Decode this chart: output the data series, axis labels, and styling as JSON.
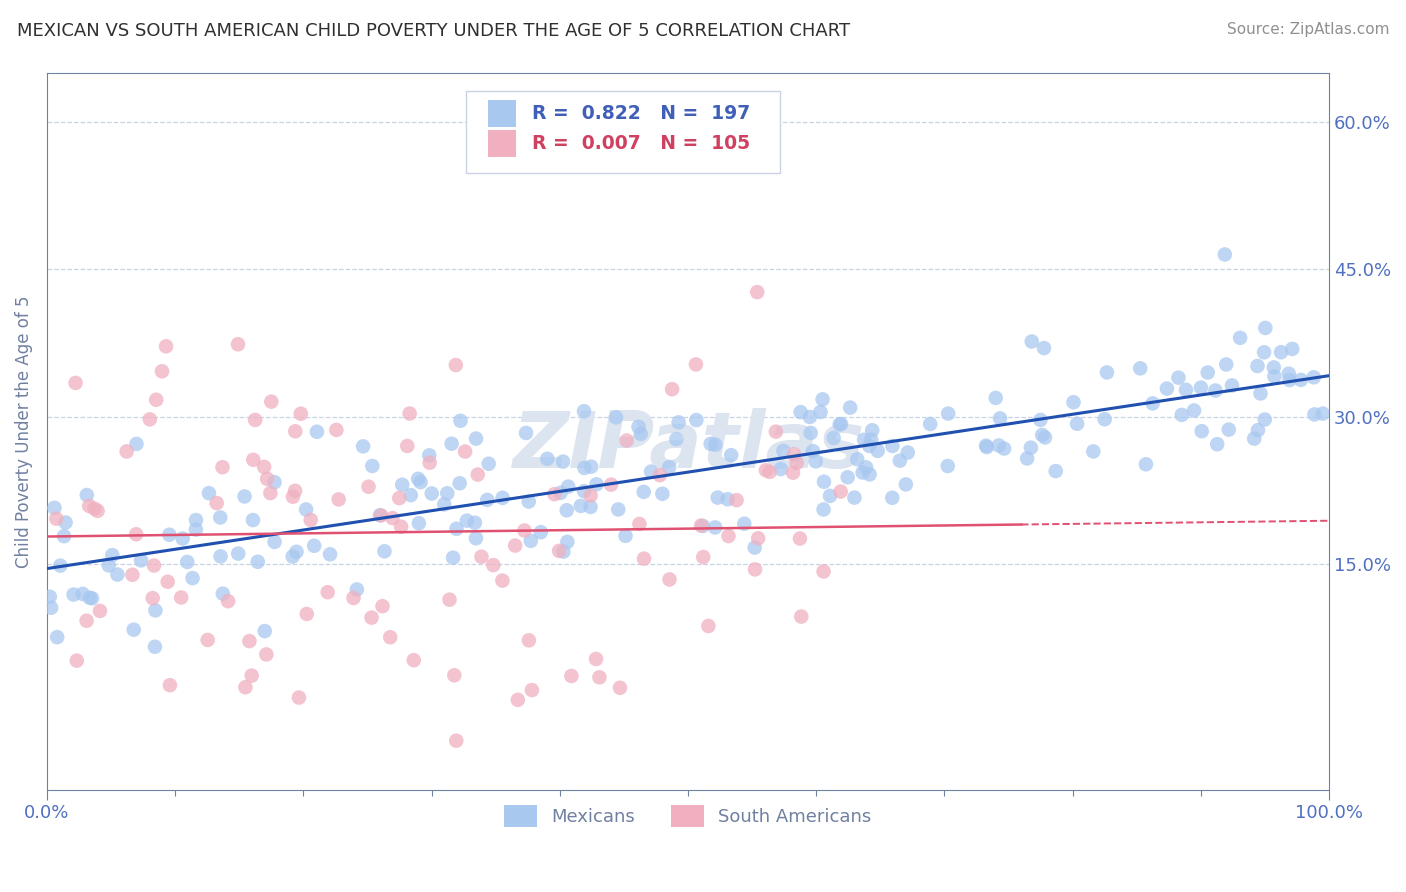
{
  "title": "MEXICAN VS SOUTH AMERICAN CHILD POVERTY UNDER THE AGE OF 5 CORRELATION CHART",
  "source": "Source: ZipAtlas.com",
  "ylabel": "Child Poverty Under the Age of 5",
  "xlim": [
    0,
    1.0
  ],
  "ylim": [
    -0.08,
    0.65
  ],
  "yticks": [
    0.15,
    0.3,
    0.45,
    0.6
  ],
  "ytick_labels": [
    "15.0%",
    "30.0%",
    "45.0%",
    "60.0%"
  ],
  "xticks": [
    0.0,
    1.0
  ],
  "xtick_labels": [
    "0.0%",
    "100.0%"
  ],
  "blue_color": "#a8c8f0",
  "pink_color": "#f0b0c0",
  "blue_line_color": "#2050b0",
  "pink_line_color": "#e05070",
  "grid_color": "#c8d4e4",
  "axis_color": "#7080a0",
  "title_color": "#303030",
  "source_color": "#909090",
  "watermark_color": "#dce4f0",
  "label_color": "#4060b8",
  "tick_label_color": "#5070c0",
  "background_color": "#ffffff",
  "blue_seed": 12,
  "pink_seed": 77,
  "blue_n": 197,
  "pink_n": 105
}
